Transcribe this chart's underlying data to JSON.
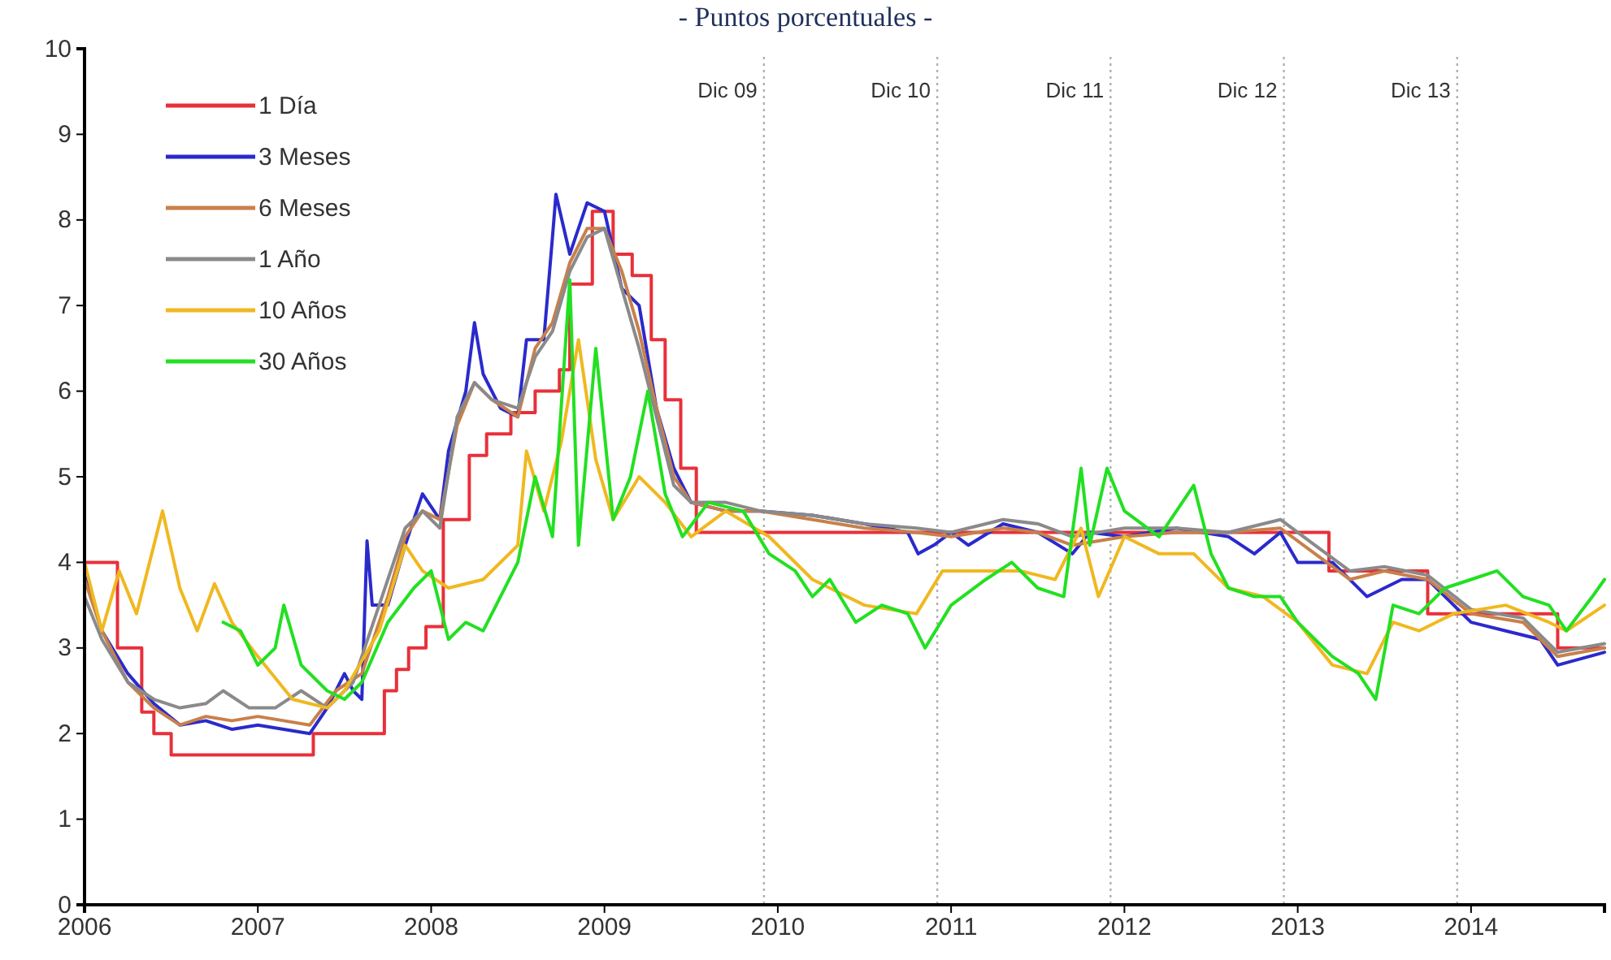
{
  "chart_data": {
    "type": "line",
    "title": "- Puntos porcentuales -",
    "xlim": [
      2006,
      2014.77
    ],
    "xticks": [
      2006,
      2007,
      2008,
      2009,
      2010,
      2011,
      2012,
      2013,
      2014
    ],
    "ylim": [
      0,
      10
    ],
    "yticks": [
      0,
      1,
      2,
      3,
      4,
      5,
      6,
      7,
      8,
      9,
      10
    ],
    "grid": false,
    "legend": "top left",
    "line_style": "solid",
    "marker": "none",
    "ref_lines": [
      {
        "axis": "x",
        "value": 2009.92,
        "label": "Dic 09",
        "color": "#b0b0b0",
        "line_style": "dotted"
      },
      {
        "axis": "x",
        "value": 2010.92,
        "label": "Dic 10",
        "color": "#b0b0b0",
        "line_style": "dotted"
      },
      {
        "axis": "x",
        "value": 2011.92,
        "label": "Dic 11",
        "color": "#b0b0b0",
        "line_style": "dotted"
      },
      {
        "axis": "x",
        "value": 2012.92,
        "label": "Dic 12",
        "color": "#b0b0b0",
        "line_style": "dotted"
      },
      {
        "axis": "x",
        "value": 2013.92,
        "label": "Dic 13",
        "color": "#b0b0b0",
        "line_style": "dotted"
      }
    ],
    "series": [
      {
        "name": "1 Día",
        "type": "step",
        "color": "#e8303a",
        "x": [
          2006,
          2006.19,
          2006.33,
          2006.4,
          2006.5,
          2007.32,
          2007.73,
          2007.8,
          2007.87,
          2007.97,
          2008.07,
          2008.22,
          2008.32,
          2008.46,
          2008.6,
          2008.74,
          2008.8,
          2008.93,
          2009.05,
          2009.16,
          2009.27,
          2009.35,
          2009.44,
          2009.53,
          2013.18,
          2013.75,
          2014.5,
          2014.77
        ],
        "values": [
          4.0,
          3.0,
          2.25,
          2.0,
          1.75,
          2.0,
          2.5,
          2.75,
          3.0,
          3.25,
          4.5,
          5.25,
          5.5,
          5.75,
          6.0,
          6.25,
          7.25,
          8.1,
          7.6,
          7.35,
          6.6,
          5.9,
          5.1,
          4.35,
          3.9,
          3.4,
          3.0,
          3.0
        ]
      },
      {
        "name": "3 Meses",
        "color": "#2a2acc",
        "x": [
          2006,
          2006.1,
          2006.25,
          2006.4,
          2006.55,
          2006.7,
          2006.85,
          2007,
          2007.15,
          2007.3,
          2007.4,
          2007.5,
          2007.55,
          2007.6,
          2007.63,
          2007.66,
          2007.75,
          2007.85,
          2007.95,
          2008.05,
          2008.1,
          2008.2,
          2008.25,
          2008.3,
          2008.4,
          2008.5,
          2008.55,
          2008.65,
          2008.7,
          2008.72,
          2008.8,
          2008.9,
          2009,
          2009.1,
          2009.2,
          2009.3,
          2009.4,
          2009.5,
          2009.7,
          2009.9,
          2010.2,
          2010.5,
          2010.75,
          2010.81,
          2010.9,
          2011,
          2011.1,
          2011.3,
          2011.5,
          2011.7,
          2011.8,
          2012,
          2012.3,
          2012.6,
          2012.75,
          2012.9,
          2013,
          2013.2,
          2013.4,
          2013.6,
          2013.75,
          2014,
          2014.2,
          2014.4,
          2014.5,
          2014.77
        ],
        "values": [
          3.9,
          3.2,
          2.7,
          2.35,
          2.1,
          2.15,
          2.05,
          2.1,
          2.05,
          2.0,
          2.3,
          2.7,
          2.5,
          2.4,
          4.25,
          3.5,
          3.5,
          4.2,
          4.8,
          4.5,
          5.3,
          6.0,
          6.8,
          6.2,
          5.8,
          5.7,
          6.6,
          6.6,
          7.8,
          8.3,
          7.6,
          8.2,
          8.1,
          7.2,
          7.0,
          5.8,
          5.1,
          4.7,
          4.6,
          4.6,
          4.55,
          4.45,
          4.35,
          4.1,
          4.2,
          4.35,
          4.2,
          4.45,
          4.35,
          4.1,
          4.35,
          4.3,
          4.4,
          4.3,
          4.1,
          4.35,
          4.0,
          4.0,
          3.6,
          3.8,
          3.8,
          3.3,
          3.2,
          3.1,
          2.8,
          2.95
        ]
      },
      {
        "name": "6 Meses",
        "color": "#c8804a",
        "x": [
          2006,
          2006.1,
          2006.25,
          2006.4,
          2006.55,
          2006.7,
          2006.85,
          2007,
          2007.15,
          2007.3,
          2007.45,
          2007.6,
          2007.75,
          2007.85,
          2007.95,
          2008.05,
          2008.15,
          2008.25,
          2008.35,
          2008.5,
          2008.6,
          2008.7,
          2008.8,
          2008.9,
          2009,
          2009.1,
          2009.2,
          2009.3,
          2009.4,
          2009.5,
          2009.7,
          2009.9,
          2010.2,
          2010.5,
          2010.8,
          2011,
          2011.3,
          2011.5,
          2011.7,
          2012,
          2012.3,
          2012.6,
          2012.9,
          2013.1,
          2013.3,
          2013.5,
          2013.75,
          2014,
          2014.3,
          2014.5,
          2014.77
        ],
        "values": [
          3.8,
          3.2,
          2.6,
          2.3,
          2.1,
          2.2,
          2.15,
          2.2,
          2.15,
          2.1,
          2.5,
          2.7,
          3.6,
          4.3,
          4.6,
          4.5,
          5.6,
          6.1,
          5.9,
          5.7,
          6.5,
          6.8,
          7.5,
          7.9,
          7.9,
          7.4,
          6.7,
          5.8,
          5.0,
          4.7,
          4.6,
          4.6,
          4.5,
          4.4,
          4.35,
          4.3,
          4.4,
          4.35,
          4.2,
          4.3,
          4.35,
          4.35,
          4.4,
          4.1,
          3.8,
          3.9,
          3.8,
          3.4,
          3.3,
          2.9,
          3.0
        ]
      },
      {
        "name": "1 Año",
        "color": "#8a8a8a",
        "x": [
          2006,
          2006.1,
          2006.25,
          2006.4,
          2006.55,
          2006.7,
          2006.8,
          2006.95,
          2007.1,
          2007.25,
          2007.4,
          2007.55,
          2007.7,
          2007.85,
          2007.95,
          2008.05,
          2008.15,
          2008.25,
          2008.35,
          2008.5,
          2008.6,
          2008.7,
          2008.8,
          2008.9,
          2009,
          2009.1,
          2009.2,
          2009.3,
          2009.4,
          2009.5,
          2009.7,
          2009.9,
          2010.2,
          2010.5,
          2010.8,
          2011,
          2011.3,
          2011.5,
          2011.7,
          2012,
          2012.3,
          2012.6,
          2012.9,
          2013.1,
          2013.3,
          2013.5,
          2013.75,
          2014,
          2014.3,
          2014.5,
          2014.77
        ],
        "values": [
          3.6,
          3.1,
          2.6,
          2.4,
          2.3,
          2.35,
          2.5,
          2.3,
          2.3,
          2.5,
          2.3,
          2.6,
          3.5,
          4.4,
          4.6,
          4.4,
          5.7,
          6.1,
          5.9,
          5.8,
          6.4,
          6.7,
          7.4,
          7.8,
          7.9,
          7.2,
          6.5,
          5.7,
          4.9,
          4.7,
          4.7,
          4.6,
          4.55,
          4.45,
          4.4,
          4.35,
          4.5,
          4.45,
          4.3,
          4.4,
          4.4,
          4.35,
          4.5,
          4.2,
          3.9,
          3.95,
          3.85,
          3.45,
          3.35,
          2.95,
          3.05
        ]
      },
      {
        "name": "10 Años",
        "color": "#f0b820",
        "x": [
          2006,
          2006.1,
          2006.2,
          2006.3,
          2006.45,
          2006.55,
          2006.65,
          2006.75,
          2006.85,
          2007,
          2007.2,
          2007.4,
          2007.5,
          2007.7,
          2007.85,
          2007.95,
          2008.1,
          2008.3,
          2008.5,
          2008.55,
          2008.65,
          2008.75,
          2008.85,
          2008.95,
          2009.05,
          2009.2,
          2009.35,
          2009.5,
          2009.7,
          2009.95,
          2010.2,
          2010.5,
          2010.8,
          2010.95,
          2011.2,
          2011.4,
          2011.6,
          2011.75,
          2011.85,
          2012,
          2012.2,
          2012.4,
          2012.6,
          2012.8,
          2013,
          2013.2,
          2013.4,
          2013.55,
          2013.7,
          2013.9,
          2014.2,
          2014.45,
          2014.55,
          2014.77
        ],
        "values": [
          4.0,
          3.2,
          3.9,
          3.4,
          4.6,
          3.7,
          3.2,
          3.75,
          3.3,
          2.9,
          2.4,
          2.3,
          2.5,
          3.2,
          4.2,
          3.9,
          3.7,
          3.8,
          4.2,
          5.3,
          4.6,
          5.4,
          6.6,
          5.2,
          4.5,
          5.0,
          4.7,
          4.3,
          4.6,
          4.3,
          3.8,
          3.5,
          3.4,
          3.9,
          3.9,
          3.9,
          3.8,
          4.4,
          3.6,
          4.3,
          4.1,
          4.1,
          3.7,
          3.6,
          3.3,
          2.8,
          2.7,
          3.3,
          3.2,
          3.4,
          3.5,
          3.3,
          3.2,
          3.5
        ]
      },
      {
        "name": "30 Años",
        "color": "#22e022",
        "x": [
          2006.8,
          2006.9,
          2007,
          2007.1,
          2007.15,
          2007.25,
          2007.4,
          2007.5,
          2007.6,
          2007.75,
          2007.9,
          2008,
          2008.1,
          2008.2,
          2008.3,
          2008.4,
          2008.5,
          2008.6,
          2008.7,
          2008.8,
          2008.85,
          2008.95,
          2009.05,
          2009.15,
          2009.25,
          2009.35,
          2009.45,
          2009.6,
          2009.8,
          2009.95,
          2010.1,
          2010.2,
          2010.3,
          2010.45,
          2010.6,
          2010.75,
          2010.85,
          2011,
          2011.2,
          2011.35,
          2011.5,
          2011.65,
          2011.75,
          2011.8,
          2011.9,
          2012,
          2012.2,
          2012.4,
          2012.5,
          2012.6,
          2012.75,
          2012.9,
          2013,
          2013.2,
          2013.35,
          2013.45,
          2013.55,
          2013.7,
          2013.85,
          2014,
          2014.15,
          2014.3,
          2014.45,
          2014.55,
          2014.7,
          2014.77
        ],
        "values": [
          3.3,
          3.2,
          2.8,
          3.0,
          3.5,
          2.8,
          2.5,
          2.4,
          2.6,
          3.3,
          3.7,
          3.9,
          3.1,
          3.3,
          3.2,
          3.6,
          4.0,
          5.0,
          4.3,
          7.3,
          4.2,
          6.5,
          4.5,
          5.0,
          6.0,
          4.8,
          4.3,
          4.7,
          4.6,
          4.1,
          3.9,
          3.6,
          3.8,
          3.3,
          3.5,
          3.4,
          3.0,
          3.5,
          3.8,
          4.0,
          3.7,
          3.6,
          5.1,
          4.2,
          5.1,
          4.6,
          4.3,
          4.9,
          4.1,
          3.7,
          3.6,
          3.6,
          3.3,
          2.9,
          2.7,
          2.4,
          3.5,
          3.4,
          3.7,
          3.8,
          3.9,
          3.6,
          3.5,
          3.2,
          3.6,
          3.8
        ]
      }
    ]
  }
}
